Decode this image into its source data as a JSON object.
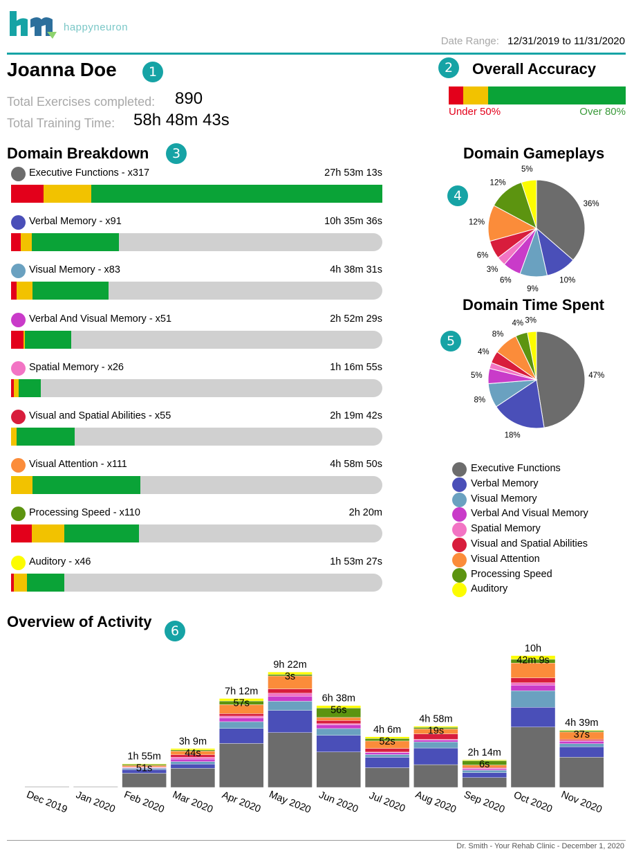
{
  "brand": {
    "name": "happyneuron"
  },
  "header": {
    "date_range_label": "Date Range:",
    "date_range_value": "12/31/2019 to 11/31/2020"
  },
  "patient": {
    "name": "Joanna Doe",
    "badge": "1",
    "exercises_label": "Total Exercises completed:",
    "exercises_value": "890",
    "training_label": "Total Training Time:",
    "training_value": "58h 48m 43s"
  },
  "accuracy": {
    "badge": "2",
    "title": "Overall Accuracy",
    "under_label": "Under 50%",
    "over_label": "Over 80%",
    "fractions": {
      "under": 0.082,
      "mid": 0.14,
      "over": 0.778
    },
    "colors": {
      "under": "#e3001b",
      "mid": "#f2c200",
      "over": "#0aa337"
    }
  },
  "domain_breakdown": {
    "badge": "3",
    "title": "Domain Breakdown",
    "items": [
      {
        "label": "Executive Functions - x317",
        "time": "27h 53m 13s",
        "color": "#6c6c6c",
        "red": 0.088,
        "yellow": 0.128,
        "green": 0.784
      },
      {
        "label": "Verbal Memory - x91",
        "time": "10h 35m 36s",
        "color": "#4a4fb8",
        "red": 0.026,
        "yellow": 0.03,
        "green": 0.235
      },
      {
        "label": "Visual Memory - x83",
        "time": "4h 38m 31s",
        "color": "#6aa1c0",
        "red": 0.015,
        "yellow": 0.043,
        "green": 0.205
      },
      {
        "label": "Verbal And Visual Memory - x51",
        "time": "2h 52m 29s",
        "color": "#c93bc9",
        "red": 0.034,
        "yellow": 0.004,
        "green": 0.124
      },
      {
        "label": "Spatial Memory - x26",
        "time": "1h 16m 55s",
        "color": "#f274c4",
        "red": 0.008,
        "yellow": 0.013,
        "green": 0.06
      },
      {
        "label": "Visual and Spatial Abilities - x55",
        "time": "2h 19m 42s",
        "color": "#d81d3c",
        "red": 0.0,
        "yellow": 0.015,
        "green": 0.157
      },
      {
        "label": "Visual Attention - x111",
        "time": "4h 58m 50s",
        "color": "#fb8c3a",
        "red": 0.0,
        "yellow": 0.057,
        "green": 0.292
      },
      {
        "label": "Processing Speed - x110",
        "time": "2h 20m",
        "color": "#5c9410",
        "red": 0.056,
        "yellow": 0.088,
        "green": 0.2
      },
      {
        "label": "Auditory - x46",
        "time": "1h 53m 27s",
        "color": "#fcfc00",
        "red": 0.008,
        "yellow": 0.035,
        "green": 0.1
      }
    ]
  },
  "chart_data": [
    {
      "type": "pie",
      "title": "Domain Gameplays",
      "badge": "4",
      "categories": [
        "Executive Functions",
        "Verbal Memory",
        "Visual Memory",
        "Verbal And Visual Memory",
        "Spatial Memory",
        "Visual and Spatial Abilities",
        "Visual Attention",
        "Processing Speed",
        "Auditory"
      ],
      "values": [
        36,
        10,
        9,
        6,
        3,
        6,
        12,
        12,
        5
      ],
      "labels": [
        "36%",
        "10%",
        "9%",
        "6%",
        "3%",
        "6%",
        "12%",
        "12%",
        "5%"
      ]
    },
    {
      "type": "pie",
      "title": "Domain Time Spent",
      "badge": "5",
      "categories": [
        "Executive Functions",
        "Verbal Memory",
        "Visual Memory",
        "Verbal And Visual Memory",
        "Spatial Memory",
        "Visual and Spatial Abilities",
        "Visual Attention",
        "Processing Speed",
        "Auditory"
      ],
      "values": [
        47,
        18,
        8,
        5,
        2,
        4,
        8,
        4,
        3
      ],
      "labels": [
        "47%",
        "18%",
        "8%",
        "5%",
        "",
        "4%",
        "8%",
        "4%",
        "3%"
      ]
    },
    {
      "type": "bar",
      "stacked": true,
      "title": "Overview of Activity",
      "badge": "6",
      "categories": [
        "Dec 2019",
        "Jan 2020",
        "Feb 2020",
        "Mar 2020",
        "Apr 2020",
        "May 2020",
        "Jun 2020",
        "Jul 2020",
        "Aug 2020",
        "Sep 2020",
        "Oct 2020",
        "Nov 2020"
      ],
      "totals": [
        "",
        "",
        "1h 55m 51s",
        "3h 9m 44s",
        "7h 12m 57s",
        "9h 22m 3s",
        "6h 38m 56s",
        "4h 6m 52s",
        "4h 58m 19s",
        "2h 14m 6s",
        "10h 42m 9s",
        "4h 39m 37s"
      ],
      "total_hours": [
        0,
        0,
        1.93,
        3.16,
        7.22,
        9.37,
        6.65,
        4.11,
        4.97,
        2.24,
        10.7,
        4.66
      ],
      "total_line1": [
        "",
        "",
        "1h 55m",
        "3h 9m",
        "7h 12m",
        "9h 22m",
        "6h 38m",
        "4h 6m",
        "4h 58m",
        "2h 14m",
        "10h",
        "4h 39m"
      ],
      "total_line2": [
        "",
        "",
        "51s",
        "44s",
        "57s",
        "3s",
        "56s",
        "52s",
        "19s",
        "6s",
        "42m 9s",
        "37s"
      ],
      "series": [
        {
          "name": "Executive Functions",
          "values": [
            0,
            0,
            1.15,
            1.55,
            3.57,
            4.45,
            2.88,
            1.6,
            1.85,
            0.8,
            4.9,
            2.45
          ]
        },
        {
          "name": "Verbal Memory",
          "values": [
            0,
            0,
            0.3,
            0.35,
            1.22,
            1.8,
            1.35,
            0.85,
            1.35,
            0.4,
            1.6,
            0.85
          ]
        },
        {
          "name": "Visual Memory",
          "values": [
            0,
            0,
            0.1,
            0.2,
            0.55,
            0.75,
            0.55,
            0.22,
            0.5,
            0.2,
            1.35,
            0.25
          ]
        },
        {
          "name": "Verbal And Visual Memory",
          "values": [
            0,
            0,
            0.05,
            0.2,
            0.3,
            0.4,
            0.3,
            0.15,
            0.15,
            0.1,
            0.45,
            0.2
          ]
        },
        {
          "name": "Spatial Memory",
          "values": [
            0,
            0,
            0.03,
            0.15,
            0.15,
            0.25,
            0.1,
            0.05,
            0.05,
            0.05,
            0.2,
            0.05
          ]
        },
        {
          "name": "Visual and Spatial Abilities",
          "values": [
            0,
            0,
            0.05,
            0.2,
            0.2,
            0.35,
            0.25,
            0.3,
            0.45,
            0.07,
            0.4,
            0.1
          ]
        },
        {
          "name": "Visual Attention",
          "values": [
            0,
            0,
            0.1,
            0.3,
            0.73,
            1.05,
            0.25,
            0.6,
            0.4,
            0.2,
            1.2,
            0.6
          ]
        },
        {
          "name": "Processing Speed",
          "values": [
            0,
            0,
            0.1,
            0.1,
            0.3,
            0.12,
            0.77,
            0.2,
            0.12,
            0.35,
            0.3,
            0.11
          ]
        },
        {
          "name": "Auditory",
          "values": [
            0,
            0,
            0.05,
            0.11,
            0.2,
            0.2,
            0.2,
            0.14,
            0.1,
            0.07,
            0.3,
            0.05
          ]
        }
      ]
    }
  ],
  "legend": {
    "items": [
      {
        "label": "Executive Functions",
        "color": "#6c6c6c"
      },
      {
        "label": "Verbal Memory",
        "color": "#4a4fb8"
      },
      {
        "label": "Visual Memory",
        "color": "#6aa1c0"
      },
      {
        "label": "Verbal And Visual Memory",
        "color": "#c93bc9"
      },
      {
        "label": "Spatial Memory",
        "color": "#f274c4"
      },
      {
        "label": "Visual and Spatial Abilities",
        "color": "#d81d3c"
      },
      {
        "label": "Visual Attention",
        "color": "#fb8c3a"
      },
      {
        "label": "Processing Speed",
        "color": "#5c9410"
      },
      {
        "label": "Auditory",
        "color": "#fcfc00"
      }
    ]
  },
  "footer": {
    "text": "Dr. Smith - Your Rehab Clinic - December 1, 2020"
  }
}
